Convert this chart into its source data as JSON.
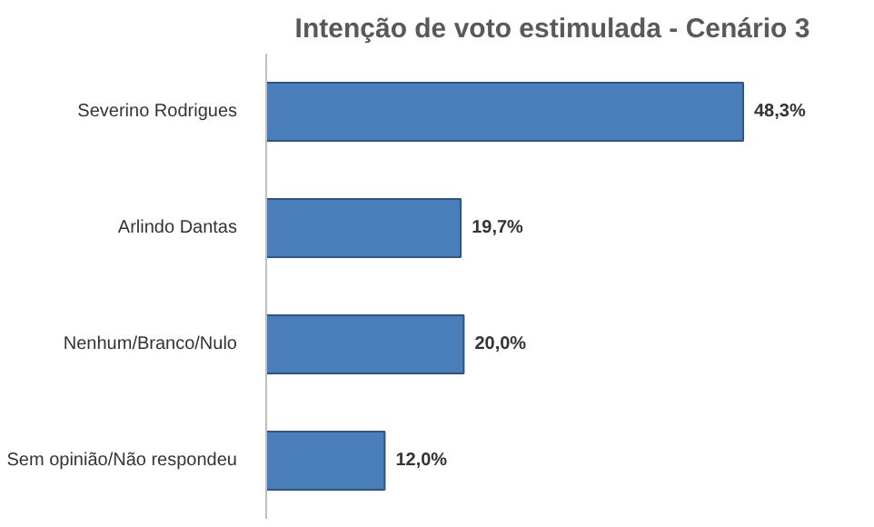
{
  "chart_data": {
    "type": "bar",
    "orientation": "horizontal",
    "title": "Intenção de voto estimulada - Cenário 3",
    "categories": [
      "Severino Rodrigues",
      "Arlindo Dantas",
      "Nenhum/Branco/Nulo",
      "Sem opinião/Não respondeu"
    ],
    "values": [
      48.3,
      19.7,
      20.0,
      12.0
    ],
    "value_labels": [
      "48,3%",
      "19,7%",
      "20,0%",
      "12,0%"
    ],
    "color": "#4a7ebb",
    "tick_labels": "y"
  }
}
